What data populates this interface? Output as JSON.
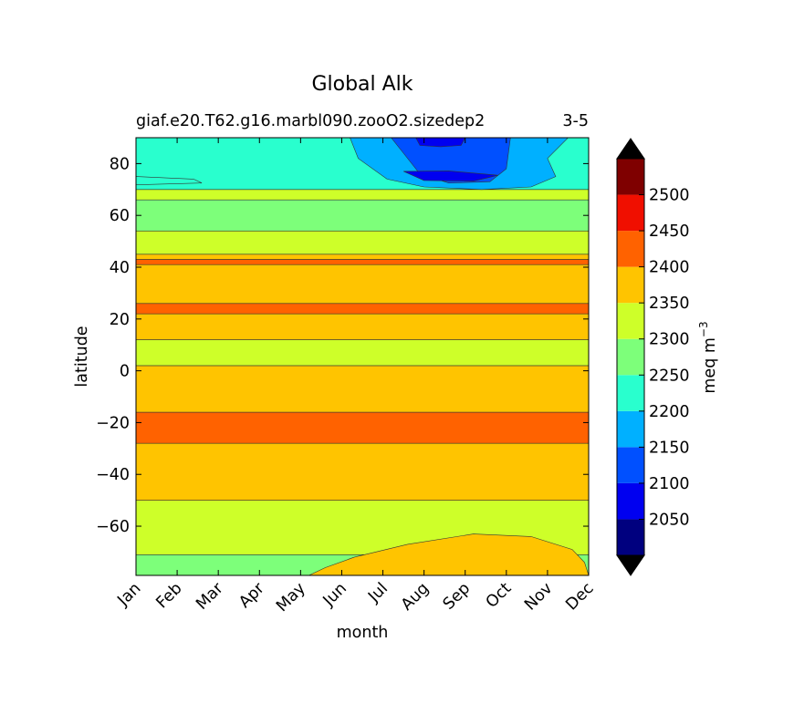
{
  "chart_data": {
    "type": "heatmap",
    "subtype": "filled-contour",
    "title": "Global Alk",
    "subtitle_left": "giaf.e20.T62.g16.marbl090.zooO2.sizedep2",
    "subtitle_right": "3-5",
    "xlabel": "month",
    "ylabel": "latitude",
    "x": [
      "Jan",
      "Feb",
      "Mar",
      "Apr",
      "May",
      "Jun",
      "Jul",
      "Aug",
      "Sep",
      "Oct",
      "Nov",
      "Dec"
    ],
    "xlim": [
      0,
      11
    ],
    "ylim": [
      -79,
      90
    ],
    "yticks": [
      -60,
      -40,
      -20,
      0,
      20,
      40,
      60,
      80
    ],
    "colorbar": {
      "label": "meq m",
      "label_exponent": "−3",
      "levels": [
        2000,
        2050,
        2100,
        2150,
        2200,
        2250,
        2300,
        2350,
        2400,
        2450,
        2500,
        2550
      ],
      "tick_labels": [
        "2050",
        "2100",
        "2150",
        "2200",
        "2250",
        "2300",
        "2350",
        "2400",
        "2450",
        "2500"
      ],
      "colors": [
        "#00007f",
        "#0000f0",
        "#0050ff",
        "#00b0ff",
        "#29ffce",
        "#7dff7a",
        "#ceff29",
        "#ffc400",
        "#ff6200",
        "#f00f00",
        "#7f0000"
      ],
      "extend": "both",
      "under_color": "#000000",
      "over_color": "#000000"
    },
    "bands": [
      {
        "y1": -79,
        "y2": -71,
        "value": 2275
      },
      {
        "y1": -71,
        "y2": -50,
        "value": 2325
      },
      {
        "y1": -50,
        "y2": -28,
        "value": 2375
      },
      {
        "y1": -28,
        "y2": -16,
        "value": 2425
      },
      {
        "y1": -16,
        "y2": 2,
        "value": 2375
      },
      {
        "y1": 2,
        "y2": 12,
        "value": 2325
      },
      {
        "y1": 12,
        "y2": 22,
        "value": 2375
      },
      {
        "y1": 22,
        "y2": 26,
        "value": 2425
      },
      {
        "y1": 26,
        "y2": 41,
        "value": 2375
      },
      {
        "y1": 41,
        "y2": 43,
        "value": 2425
      },
      {
        "y1": 43,
        "y2": 45,
        "value": 2375
      },
      {
        "y1": 45,
        "y2": 54,
        "value": 2325
      },
      {
        "y1": 54,
        "y2": 66,
        "value": 2275
      },
      {
        "y1": 66,
        "y2": 70,
        "value": 2325
      },
      {
        "y1": 70,
        "y2": 90,
        "value": 2225
      }
    ],
    "features": [
      {
        "name": "southern-orange-lens",
        "value": 2375,
        "points": [
          [
            4.2,
            -79
          ],
          [
            4.6,
            -76
          ],
          [
            5.3,
            -72
          ],
          [
            6.6,
            -67
          ],
          [
            8.2,
            -63
          ],
          [
            9.6,
            -64
          ],
          [
            10.6,
            -69
          ],
          [
            10.9,
            -74
          ],
          [
            11,
            -79
          ]
        ]
      },
      {
        "name": "arctic-outer-blue",
        "value": 2175,
        "points": [
          [
            5.2,
            90
          ],
          [
            5.4,
            82
          ],
          [
            6.1,
            74
          ],
          [
            7,
            71
          ],
          [
            8.4,
            70
          ],
          [
            9.6,
            71
          ],
          [
            10.2,
            75
          ],
          [
            10,
            82
          ],
          [
            10.5,
            90
          ]
        ]
      },
      {
        "name": "arctic-mid-blue",
        "value": 2125,
        "points": [
          [
            6.2,
            90
          ],
          [
            6.5,
            84
          ],
          [
            6.9,
            76
          ],
          [
            7.6,
            72.5
          ],
          [
            8.6,
            73
          ],
          [
            9,
            78
          ],
          [
            9.1,
            90
          ]
        ]
      },
      {
        "name": "arctic-inner-blue",
        "value": 2075,
        "points": [
          [
            6.5,
            77
          ],
          [
            7,
            73.5
          ],
          [
            8.2,
            73.2
          ],
          [
            8.8,
            75.5
          ],
          [
            7.6,
            77.2
          ]
        ]
      },
      {
        "name": "arctic-cap-blue",
        "value": 2075,
        "points": [
          [
            6.8,
            90
          ],
          [
            6.9,
            87
          ],
          [
            7.4,
            86.5
          ],
          [
            7.9,
            87
          ],
          [
            8,
            90
          ]
        ]
      },
      {
        "name": "arctic-cyan-tongue",
        "value": 2225,
        "points": [
          [
            0,
            75
          ],
          [
            1.4,
            74
          ],
          [
            1.6,
            72.5
          ],
          [
            0,
            71.8
          ]
        ]
      }
    ]
  }
}
